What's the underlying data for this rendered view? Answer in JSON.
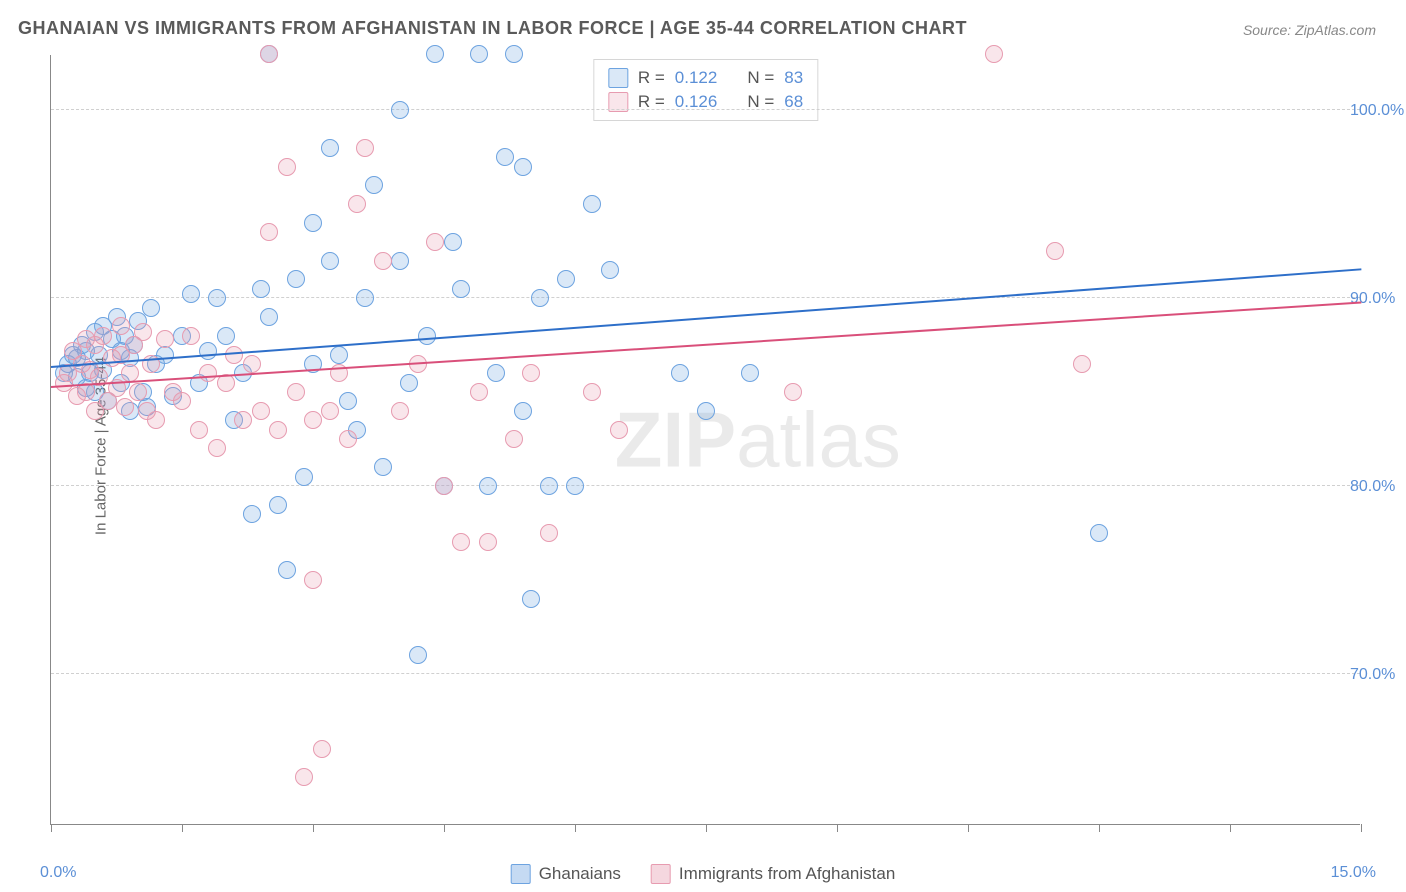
{
  "title": "GHANAIAN VS IMMIGRANTS FROM AFGHANISTAN IN LABOR FORCE | AGE 35-44 CORRELATION CHART",
  "source": "Source: ZipAtlas.com",
  "watermark_bold": "ZIP",
  "watermark_rest": "atlas",
  "ylabel": "In Labor Force | Age 35-44",
  "chart": {
    "type": "scatter-with-regression",
    "background_color": "#ffffff",
    "grid_color": "#d0d0d0",
    "axis_color": "#888888",
    "text_color": "#666666",
    "value_color": "#5b8fd6",
    "xlim": [
      0,
      15
    ],
    "ylim": [
      62,
      103
    ],
    "xticks": [
      0,
      1.5,
      3,
      4.5,
      6,
      7.5,
      9,
      10.5,
      12,
      13.5,
      15
    ],
    "xtick_labels": {
      "0": "0.0%",
      "15": "15.0%"
    },
    "yticks": [
      70,
      80,
      90,
      100
    ],
    "ytick_labels": {
      "70": "70.0%",
      "80": "80.0%",
      "90": "90.0%",
      "100": "100.0%"
    },
    "marker_radius": 9,
    "marker_stroke_width": 1.5,
    "marker_fill_opacity": 0.25,
    "series": [
      {
        "name": "Ghanaians",
        "color": "#6da3e0",
        "fill": "rgba(109,163,224,0.25)",
        "stroke": "#6da3e0",
        "trend_color": "#2e6fc9",
        "R": "0.122",
        "N": "83",
        "regression": {
          "x1": 0,
          "y1": 86.3,
          "x2": 15,
          "y2": 91.5
        },
        "points": [
          [
            0.15,
            86.0
          ],
          [
            0.2,
            86.5
          ],
          [
            0.25,
            87.0
          ],
          [
            0.3,
            85.8
          ],
          [
            0.3,
            86.8
          ],
          [
            0.35,
            87.5
          ],
          [
            0.4,
            85.2
          ],
          [
            0.4,
            87.2
          ],
          [
            0.45,
            86.0
          ],
          [
            0.5,
            88.2
          ],
          [
            0.5,
            85.0
          ],
          [
            0.55,
            87.0
          ],
          [
            0.6,
            86.2
          ],
          [
            0.6,
            88.5
          ],
          [
            0.65,
            84.5
          ],
          [
            0.7,
            87.8
          ],
          [
            0.75,
            89.0
          ],
          [
            0.8,
            85.5
          ],
          [
            0.8,
            87.2
          ],
          [
            0.85,
            88.0
          ],
          [
            0.9,
            84.0
          ],
          [
            0.9,
            86.8
          ],
          [
            0.95,
            87.5
          ],
          [
            1.0,
            88.8
          ],
          [
            1.05,
            85.0
          ],
          [
            1.1,
            84.2
          ],
          [
            1.15,
            89.5
          ],
          [
            1.2,
            86.5
          ],
          [
            1.3,
            87.0
          ],
          [
            1.4,
            84.8
          ],
          [
            1.5,
            88.0
          ],
          [
            1.6,
            90.2
          ],
          [
            1.7,
            85.5
          ],
          [
            1.8,
            87.2
          ],
          [
            1.9,
            90.0
          ],
          [
            2.0,
            88.0
          ],
          [
            2.1,
            83.5
          ],
          [
            2.2,
            86.0
          ],
          [
            2.3,
            78.5
          ],
          [
            2.4,
            90.5
          ],
          [
            2.5,
            89.0
          ],
          [
            2.5,
            103.0
          ],
          [
            2.6,
            79.0
          ],
          [
            2.7,
            75.5
          ],
          [
            2.8,
            91.0
          ],
          [
            2.9,
            80.5
          ],
          [
            3.0,
            86.5
          ],
          [
            3.0,
            94.0
          ],
          [
            3.2,
            92.0
          ],
          [
            3.2,
            98.0
          ],
          [
            3.3,
            87.0
          ],
          [
            3.4,
            84.5
          ],
          [
            3.5,
            83.0
          ],
          [
            3.6,
            90.0
          ],
          [
            3.7,
            96.0
          ],
          [
            3.8,
            81.0
          ],
          [
            4.0,
            92.0
          ],
          [
            4.0,
            100.0
          ],
          [
            4.1,
            85.5
          ],
          [
            4.2,
            71.0
          ],
          [
            4.3,
            88.0
          ],
          [
            4.4,
            103.0
          ],
          [
            4.5,
            80.0
          ],
          [
            4.6,
            93.0
          ],
          [
            4.7,
            90.5
          ],
          [
            4.9,
            103.0
          ],
          [
            5.0,
            80.0
          ],
          [
            5.1,
            86.0
          ],
          [
            5.2,
            97.5
          ],
          [
            5.3,
            103.0
          ],
          [
            5.4,
            84.0
          ],
          [
            5.4,
            97.0
          ],
          [
            5.5,
            74.0
          ],
          [
            5.6,
            90.0
          ],
          [
            5.7,
            80.0
          ],
          [
            5.9,
            91.0
          ],
          [
            6.0,
            80.0
          ],
          [
            6.2,
            95.0
          ],
          [
            6.4,
            91.5
          ],
          [
            7.2,
            86.0
          ],
          [
            7.5,
            84.0
          ],
          [
            8.0,
            86.0
          ],
          [
            12.0,
            77.5
          ]
        ]
      },
      {
        "name": "Immigrants from Afghanistan",
        "color": "#e79bb0",
        "fill": "rgba(231,155,176,0.25)",
        "stroke": "#e79bb0",
        "trend_color": "#d94f7a",
        "R": "0.126",
        "N": "68",
        "regression": {
          "x1": 0,
          "y1": 85.2,
          "x2": 15,
          "y2": 89.7
        },
        "points": [
          [
            0.15,
            85.5
          ],
          [
            0.2,
            86.0
          ],
          [
            0.25,
            87.2
          ],
          [
            0.3,
            84.8
          ],
          [
            0.35,
            86.5
          ],
          [
            0.4,
            85.0
          ],
          [
            0.4,
            87.8
          ],
          [
            0.45,
            86.2
          ],
          [
            0.5,
            84.0
          ],
          [
            0.5,
            87.5
          ],
          [
            0.55,
            85.8
          ],
          [
            0.6,
            88.0
          ],
          [
            0.65,
            84.5
          ],
          [
            0.7,
            86.8
          ],
          [
            0.75,
            85.2
          ],
          [
            0.8,
            87.0
          ],
          [
            0.8,
            88.5
          ],
          [
            0.85,
            84.2
          ],
          [
            0.9,
            86.0
          ],
          [
            0.95,
            87.5
          ],
          [
            1.0,
            85.0
          ],
          [
            1.05,
            88.2
          ],
          [
            1.1,
            84.0
          ],
          [
            1.15,
            86.5
          ],
          [
            1.2,
            83.5
          ],
          [
            1.3,
            87.8
          ],
          [
            1.4,
            85.0
          ],
          [
            1.5,
            84.5
          ],
          [
            1.6,
            88.0
          ],
          [
            1.7,
            83.0
          ],
          [
            1.8,
            86.0
          ],
          [
            1.9,
            82.0
          ],
          [
            2.0,
            85.5
          ],
          [
            2.1,
            87.0
          ],
          [
            2.2,
            83.5
          ],
          [
            2.3,
            86.5
          ],
          [
            2.4,
            84.0
          ],
          [
            2.5,
            93.5
          ],
          [
            2.5,
            103.0
          ],
          [
            2.6,
            83.0
          ],
          [
            2.7,
            97.0
          ],
          [
            2.8,
            85.0
          ],
          [
            2.9,
            64.5
          ],
          [
            3.0,
            75.0
          ],
          [
            3.0,
            83.5
          ],
          [
            3.1,
            66.0
          ],
          [
            3.2,
            84.0
          ],
          [
            3.3,
            86.0
          ],
          [
            3.4,
            82.5
          ],
          [
            3.5,
            95.0
          ],
          [
            3.6,
            98.0
          ],
          [
            3.8,
            92.0
          ],
          [
            4.0,
            84.0
          ],
          [
            4.2,
            86.5
          ],
          [
            4.4,
            93.0
          ],
          [
            4.5,
            80.0
          ],
          [
            4.7,
            77.0
          ],
          [
            4.9,
            85.0
          ],
          [
            5.0,
            77.0
          ],
          [
            5.3,
            82.5
          ],
          [
            5.5,
            86.0
          ],
          [
            5.7,
            77.5
          ],
          [
            6.2,
            85.0
          ],
          [
            6.5,
            83.0
          ],
          [
            8.5,
            85.0
          ],
          [
            10.8,
            103.0
          ],
          [
            11.5,
            92.5
          ],
          [
            11.8,
            86.5
          ]
        ]
      }
    ],
    "bottom_legend": [
      {
        "label": "Ghanaians",
        "fill": "rgba(109,163,224,0.4)",
        "stroke": "#6da3e0"
      },
      {
        "label": "Immigrants from Afghanistan",
        "fill": "rgba(231,155,176,0.4)",
        "stroke": "#e79bb0"
      }
    ],
    "top_legend_labels": {
      "R": "R =",
      "N": "N ="
    }
  }
}
